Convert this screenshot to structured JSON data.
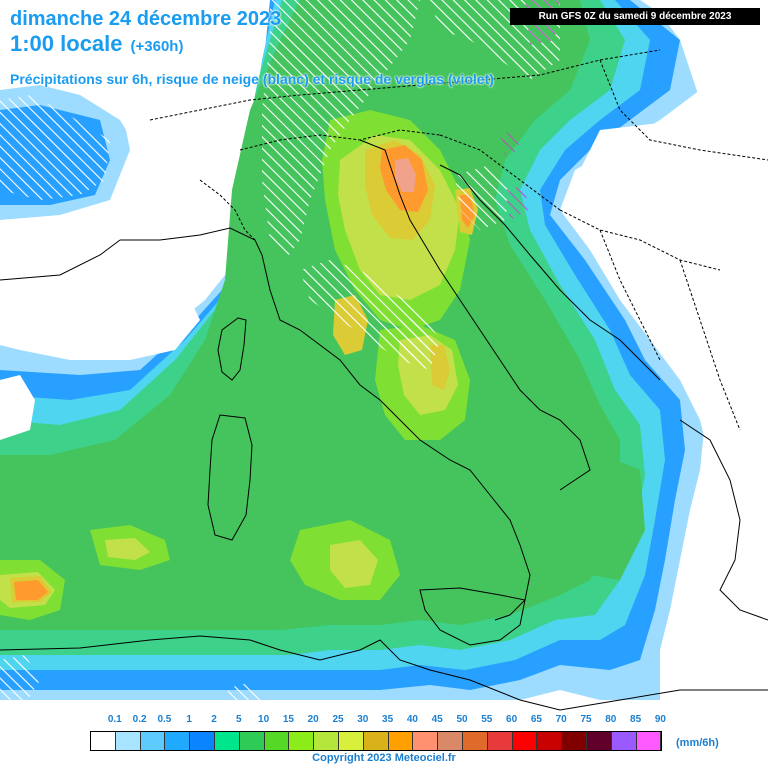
{
  "header": {
    "date_line": "dimanche 24 décembre 2023",
    "time_line": "1:00 locale",
    "echeance": "(+360h)",
    "subtitle": "Précipitations sur 6h, risque de neige (blanc) et risque de verglas (violet)"
  },
  "run_banner": "Run GFS 0Z du samedi 9 décembre 2023",
  "legend": {
    "unit": "(mm/6h)",
    "ticks": [
      "0.1",
      "0.2",
      "0.5",
      "1",
      "2",
      "5",
      "10",
      "15",
      "20",
      "25",
      "30",
      "35",
      "40",
      "45",
      "50",
      "55",
      "60",
      "65",
      "70",
      "75",
      "80",
      "85",
      "90"
    ],
    "colors": [
      "#ffffff",
      "#a6e4ff",
      "#5ecbff",
      "#20aaff",
      "#0a84ff",
      "#00e68c",
      "#2ecc57",
      "#56d826",
      "#8cec1a",
      "#b4e63c",
      "#d8f03c",
      "#d9b21a",
      "#ffa000",
      "#ff9070",
      "#d98868",
      "#e06a2a",
      "#e83a3a",
      "#ff0000",
      "#c80000",
      "#800000",
      "#60002a",
      "#9a5aff",
      "#ff5aff"
    ]
  },
  "precip_colors": {
    "light_blue": "#9ddcff",
    "blue": "#28a0ff",
    "cyan": "#4fd5ef",
    "green_light": "#3ed18a",
    "green": "#45c35c",
    "green_bright": "#7fe033",
    "yellow_green": "#c2e04a",
    "yellow": "#dbcb35",
    "orange": "#ff9a2e",
    "salmon": "#f0a28a"
  },
  "copyright": "Copyright 2023 Meteociel.fr"
}
